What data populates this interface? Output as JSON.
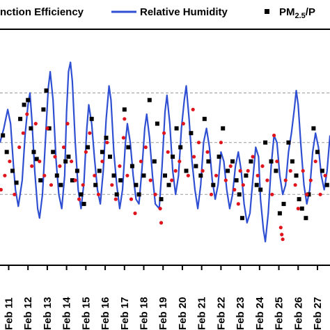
{
  "chart_data": {
    "type": "line",
    "legend": [
      {
        "label": "nction Efficiency",
        "marker": "line",
        "color": "#000000"
      },
      {
        "label": "Relative Humidity",
        "marker": "line",
        "color": "#2f4fd3"
      },
      {
        "label": "PM",
        "sub": "2.5",
        "tail": "/P",
        "marker": "dot",
        "color": "#000000"
      }
    ],
    "categories": [
      "Feb 11",
      "Feb 12",
      "Feb 13",
      "Feb 14",
      "Feb 15",
      "Feb 16",
      "Feb 17",
      "Feb 18",
      "Feb 19",
      "Feb 20",
      "Feb 21",
      "Feb 22",
      "Feb 23",
      "Feb 24",
      "Feb 25",
      "Feb 26",
      "Feb 27"
    ],
    "x_range": [
      10.55,
      27.65
    ],
    "y_range": [
      0,
      100
    ],
    "gridlines": [
      30,
      52,
      73
    ],
    "grid": "dashed-horizontal",
    "legend_placement": "top",
    "colors": {
      "rh_line": "#2f4fd3",
      "black_points": "#000000",
      "red_points": "#e0141c",
      "grid": "#9a9a9a"
    },
    "series": [
      {
        "name": "Relative Humidity",
        "kind": "line",
        "points": [
          [
            10.55,
            52
          ],
          [
            10.75,
            58
          ],
          [
            10.95,
            66
          ],
          [
            11.1,
            60
          ],
          [
            11.25,
            42
          ],
          [
            11.35,
            32
          ],
          [
            11.5,
            25
          ],
          [
            11.7,
            36
          ],
          [
            11.85,
            55
          ],
          [
            12.0,
            68
          ],
          [
            12.1,
            73
          ],
          [
            12.2,
            62
          ],
          [
            12.35,
            40
          ],
          [
            12.5,
            24
          ],
          [
            12.6,
            20
          ],
          [
            12.75,
            30
          ],
          [
            12.9,
            52
          ],
          [
            13.05,
            75
          ],
          [
            13.15,
            82
          ],
          [
            13.3,
            70
          ],
          [
            13.45,
            45
          ],
          [
            13.6,
            30
          ],
          [
            13.75,
            24
          ],
          [
            13.9,
            38
          ],
          [
            14.0,
            65
          ],
          [
            14.1,
            82
          ],
          [
            14.2,
            86
          ],
          [
            14.3,
            78
          ],
          [
            14.45,
            52
          ],
          [
            14.6,
            32
          ],
          [
            14.75,
            24
          ],
          [
            14.9,
            35
          ],
          [
            15.05,
            58
          ],
          [
            15.15,
            68
          ],
          [
            15.3,
            60
          ],
          [
            15.45,
            45
          ],
          [
            15.6,
            32
          ],
          [
            15.75,
            26
          ],
          [
            15.9,
            40
          ],
          [
            16.05,
            62
          ],
          [
            16.2,
            76
          ],
          [
            16.3,
            70
          ],
          [
            16.45,
            48
          ],
          [
            16.6,
            34
          ],
          [
            16.75,
            24
          ],
          [
            16.9,
            32
          ],
          [
            17.05,
            52
          ],
          [
            17.15,
            60
          ],
          [
            17.3,
            52
          ],
          [
            17.45,
            38
          ],
          [
            17.6,
            28
          ],
          [
            17.75,
            26
          ],
          [
            17.9,
            40
          ],
          [
            18.05,
            58
          ],
          [
            18.15,
            64
          ],
          [
            18.3,
            54
          ],
          [
            18.45,
            38
          ],
          [
            18.6,
            26
          ],
          [
            18.8,
            24
          ],
          [
            18.95,
            42
          ],
          [
            19.1,
            65
          ],
          [
            19.2,
            72
          ],
          [
            19.35,
            60
          ],
          [
            19.5,
            40
          ],
          [
            19.65,
            30
          ],
          [
            19.8,
            38
          ],
          [
            19.95,
            58
          ],
          [
            20.1,
            70
          ],
          [
            20.2,
            76
          ],
          [
            20.35,
            62
          ],
          [
            20.5,
            44
          ],
          [
            20.65,
            32
          ],
          [
            20.8,
            24
          ],
          [
            20.95,
            34
          ],
          [
            21.1,
            52
          ],
          [
            21.25,
            58
          ],
          [
            21.4,
            50
          ],
          [
            21.55,
            36
          ],
          [
            21.7,
            28
          ],
          [
            21.85,
            34
          ],
          [
            22.0,
            48
          ],
          [
            22.15,
            44
          ],
          [
            22.3,
            32
          ],
          [
            22.45,
            24
          ],
          [
            22.6,
            30
          ],
          [
            22.75,
            42
          ],
          [
            22.9,
            48
          ],
          [
            23.05,
            40
          ],
          [
            23.2,
            26
          ],
          [
            23.35,
            18
          ],
          [
            23.5,
            22
          ],
          [
            23.65,
            36
          ],
          [
            23.8,
            50
          ],
          [
            23.95,
            46
          ],
          [
            24.05,
            28
          ],
          [
            24.2,
            15
          ],
          [
            24.3,
            10
          ],
          [
            24.45,
            22
          ],
          [
            24.6,
            42
          ],
          [
            24.75,
            55
          ],
          [
            24.9,
            52
          ],
          [
            25.05,
            38
          ],
          [
            25.2,
            30
          ],
          [
            25.35,
            34
          ],
          [
            25.5,
            48
          ],
          [
            25.65,
            56
          ],
          [
            25.8,
            66
          ],
          [
            25.9,
            74
          ],
          [
            26.0,
            68
          ],
          [
            26.15,
            50
          ],
          [
            26.3,
            34
          ],
          [
            26.45,
            26
          ],
          [
            26.6,
            32
          ],
          [
            26.75,
            48
          ],
          [
            26.9,
            56
          ],
          [
            27.05,
            50
          ],
          [
            27.2,
            38
          ],
          [
            27.35,
            32
          ],
          [
            27.5,
            40
          ],
          [
            27.65,
            55
          ]
        ]
      },
      {
        "name": "PM2.5/P",
        "kind": "points",
        "color": "#000000",
        "points": [
          [
            10.7,
            55
          ],
          [
            10.9,
            48
          ],
          [
            11.2,
            40
          ],
          [
            11.4,
            35
          ],
          [
            11.6,
            62
          ],
          [
            11.8,
            68
          ],
          [
            12.0,
            70
          ],
          [
            12.15,
            58
          ],
          [
            12.3,
            48
          ],
          [
            12.45,
            45
          ],
          [
            12.65,
            36
          ],
          [
            12.8,
            66
          ],
          [
            12.95,
            74
          ],
          [
            13.1,
            58
          ],
          [
            13.3,
            48
          ],
          [
            13.5,
            38
          ],
          [
            13.7,
            34
          ],
          [
            13.95,
            44
          ],
          [
            14.1,
            46
          ],
          [
            14.3,
            36
          ],
          [
            14.55,
            40
          ],
          [
            14.75,
            30
          ],
          [
            14.9,
            26
          ],
          [
            15.1,
            50
          ],
          [
            15.3,
            62
          ],
          [
            15.5,
            34
          ],
          [
            15.7,
            40
          ],
          [
            15.85,
            48
          ],
          [
            16.05,
            54
          ],
          [
            16.25,
            46
          ],
          [
            16.45,
            38
          ],
          [
            16.6,
            30
          ],
          [
            16.8,
            36
          ],
          [
            17.0,
            66
          ],
          [
            17.2,
            50
          ],
          [
            17.4,
            42
          ],
          [
            17.6,
            34
          ],
          [
            17.75,
            30
          ],
          [
            18.0,
            38
          ],
          [
            18.3,
            70
          ],
          [
            18.55,
            44
          ],
          [
            18.7,
            60
          ],
          [
            18.9,
            28
          ],
          [
            19.1,
            38
          ],
          [
            19.3,
            34
          ],
          [
            19.5,
            46
          ],
          [
            19.7,
            58
          ],
          [
            19.9,
            50
          ],
          [
            20.2,
            40
          ],
          [
            20.45,
            56
          ],
          [
            20.7,
            42
          ],
          [
            20.95,
            38
          ],
          [
            21.15,
            62
          ],
          [
            21.35,
            44
          ],
          [
            21.6,
            34
          ],
          [
            21.9,
            46
          ],
          [
            22.1,
            58
          ],
          [
            22.35,
            40
          ],
          [
            22.6,
            44
          ],
          [
            22.8,
            36
          ],
          [
            22.95,
            30
          ],
          [
            23.1,
            20
          ],
          [
            23.3,
            38
          ],
          [
            23.55,
            44
          ],
          [
            23.85,
            34
          ],
          [
            24.05,
            32
          ],
          [
            24.3,
            52
          ],
          [
            24.6,
            44
          ],
          [
            24.85,
            40
          ],
          [
            25.05,
            22
          ],
          [
            25.25,
            26
          ],
          [
            25.5,
            52
          ],
          [
            25.7,
            44
          ],
          [
            25.9,
            38
          ],
          [
            26.05,
            28
          ],
          [
            26.2,
            24
          ],
          [
            26.4,
            20
          ],
          [
            26.55,
            30
          ],
          [
            26.8,
            58
          ],
          [
            27.0,
            48
          ],
          [
            27.25,
            40
          ],
          [
            27.5,
            34
          ]
        ]
      },
      {
        "name": "",
        "kind": "points",
        "color": "#e0141c",
        "points": [
          [
            10.6,
            32
          ],
          [
            10.8,
            38
          ],
          [
            11.05,
            44
          ],
          [
            11.3,
            30
          ],
          [
            11.55,
            50
          ],
          [
            11.75,
            56
          ],
          [
            11.95,
            64
          ],
          [
            12.2,
            42
          ],
          [
            12.4,
            60
          ],
          [
            12.6,
            44
          ],
          [
            12.85,
            38
          ],
          [
            13.0,
            58
          ],
          [
            13.2,
            34
          ],
          [
            13.4,
            46
          ],
          [
            13.65,
            42
          ],
          [
            13.85,
            50
          ],
          [
            14.05,
            60
          ],
          [
            14.25,
            44
          ],
          [
            14.45,
            36
          ],
          [
            14.65,
            28
          ],
          [
            14.85,
            34
          ],
          [
            15.0,
            48
          ],
          [
            15.2,
            56
          ],
          [
            15.45,
            38
          ],
          [
            15.65,
            30
          ],
          [
            15.85,
            44
          ],
          [
            16.1,
            52
          ],
          [
            16.35,
            34
          ],
          [
            16.55,
            28
          ],
          [
            16.75,
            42
          ],
          [
            16.95,
            54
          ],
          [
            17.15,
            38
          ],
          [
            17.35,
            28
          ],
          [
            17.55,
            22
          ],
          [
            17.85,
            44
          ],
          [
            18.1,
            50
          ],
          [
            18.35,
            36
          ],
          [
            18.6,
            30
          ],
          [
            18.85,
            24
          ],
          [
            19.05,
            56
          ],
          [
            19.25,
            48
          ],
          [
            19.45,
            36
          ],
          [
            19.65,
            40
          ],
          [
            19.85,
            44
          ],
          [
            20.05,
            60
          ],
          [
            20.3,
            38
          ],
          [
            20.6,
            46
          ],
          [
            20.85,
            52
          ],
          [
            21.05,
            40
          ],
          [
            21.3,
            48
          ],
          [
            21.5,
            30
          ],
          [
            21.75,
            38
          ],
          [
            22.0,
            52
          ],
          [
            22.25,
            36
          ],
          [
            22.5,
            42
          ],
          [
            22.7,
            32
          ],
          [
            22.9,
            26
          ],
          [
            23.15,
            34
          ],
          [
            23.4,
            40
          ],
          [
            23.65,
            46
          ],
          [
            23.9,
            38
          ],
          [
            24.15,
            42
          ],
          [
            24.4,
            36
          ],
          [
            24.65,
            30
          ],
          [
            24.9,
            44
          ],
          [
            25.1,
            16
          ],
          [
            25.15,
            13
          ],
          [
            25.2,
            11
          ],
          [
            25.35,
            36
          ],
          [
            25.6,
            40
          ],
          [
            25.85,
            34
          ],
          [
            26.0,
            24
          ],
          [
            26.25,
            40
          ],
          [
            26.45,
            30
          ],
          [
            26.65,
            36
          ],
          [
            26.9,
            44
          ],
          [
            27.15,
            30
          ],
          [
            27.4,
            38
          ],
          [
            17.0,
            62
          ],
          [
            18.9,
            18
          ],
          [
            20.55,
            66
          ],
          [
            23.0,
            40
          ],
          [
            24.75,
            55
          ]
        ]
      }
    ]
  }
}
